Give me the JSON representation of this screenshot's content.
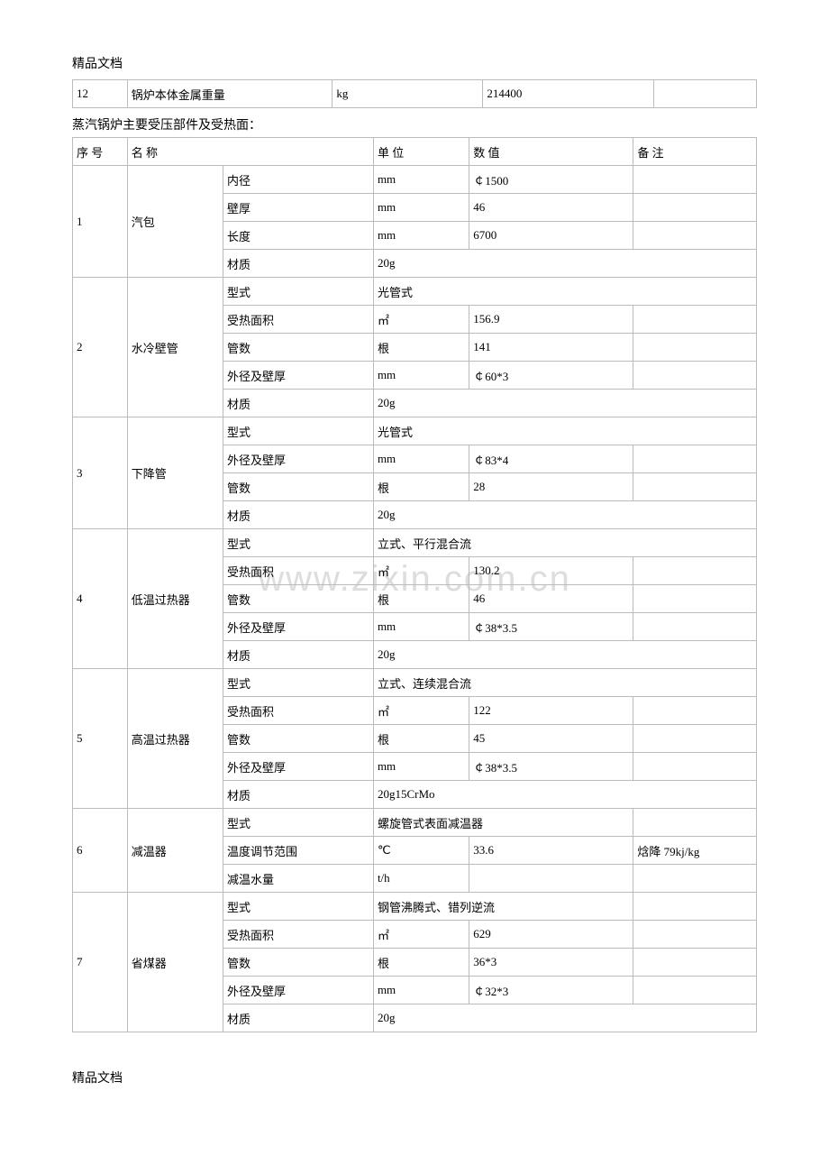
{
  "header": "精品文档",
  "footer": "精品文档",
  "watermark": "www.zixin.com.cn",
  "table1": {
    "widths": [
      "8%",
      "30%",
      "22%",
      "25%",
      "15%"
    ],
    "row": {
      "c0": "12",
      "c1": "锅炉本体金属重量",
      "c2": "kg",
      "c3": "214400",
      "c4": ""
    }
  },
  "section_title": "蒸汽锅炉主要受压部件及受热面：",
  "table2": {
    "widths": [
      "8%",
      "14%",
      "22%",
      "14%",
      "24%",
      "18%"
    ],
    "header": {
      "c0": "序 号",
      "c1": "名 称",
      "c2": "",
      "c3": "单 位",
      "c4": "数 值",
      "c5": "备 注"
    },
    "groups": [
      {
        "num": "1",
        "name": "汽包",
        "rows": [
          {
            "p": "内径",
            "u": "mm",
            "v": "￠1500",
            "n": "",
            "span": 1
          },
          {
            "p": "壁厚",
            "u": "mm",
            "v": "46",
            "n": "",
            "span": 1
          },
          {
            "p": "长度",
            "u": "mm",
            "v": "6700",
            "n": "",
            "span": 1
          },
          {
            "p": "材质",
            "u": "20g",
            "v": "",
            "n": "",
            "span": 3
          }
        ]
      },
      {
        "num": "2",
        "name": "水冷壁管",
        "rows": [
          {
            "p": "型式",
            "u": "光管式",
            "v": "",
            "n": "",
            "span": 3
          },
          {
            "p": "受热面积",
            "u": "㎡",
            "v": "156.9",
            "n": "",
            "span": 1
          },
          {
            "p": "管数",
            "u": "根",
            "v": "141",
            "n": "",
            "span": 1
          },
          {
            "p": "外径及壁厚",
            "u": "mm",
            "v": "￠60*3",
            "n": "",
            "span": 1
          },
          {
            "p": "材质",
            "u": "20g",
            "v": "",
            "n": "",
            "span": 3
          }
        ]
      },
      {
        "num": "3",
        "name": "下降管",
        "rows": [
          {
            "p": "型式",
            "u": "光管式",
            "v": "",
            "n": "",
            "span": 3
          },
          {
            "p": "外径及壁厚",
            "u": "mm",
            "v": "￠83*4",
            "n": "",
            "span": 1
          },
          {
            "p": "管数",
            "u": "根",
            "v": "28",
            "n": "",
            "span": 1
          },
          {
            "p": "材质",
            "u": "20g",
            "v": "",
            "n": "",
            "span": 3
          }
        ]
      },
      {
        "num": "4",
        "name": "低温过热器",
        "rows": [
          {
            "p": "型式",
            "u": "立式、平行混合流",
            "v": "",
            "n": "",
            "span": 3
          },
          {
            "p": "受热面积",
            "u": "㎡",
            "v": "130.2",
            "n": "",
            "span": 1
          },
          {
            "p": "管数",
            "u": "根",
            "v": "46",
            "n": "",
            "span": 1
          },
          {
            "p": "外径及壁厚",
            "u": "mm",
            "v": "￠38*3.5",
            "n": "",
            "span": 1
          },
          {
            "p": "材质",
            "u": "20g",
            "v": "",
            "n": "",
            "span": 3
          }
        ]
      },
      {
        "num": "5",
        "name": "高温过热器",
        "rows": [
          {
            "p": "型式",
            "u": "立式、连续混合流",
            "v": "",
            "n": "",
            "span": 3
          },
          {
            "p": "受热面积",
            "u": "㎡",
            "v": "122",
            "n": "",
            "span": 1
          },
          {
            "p": "管数",
            "u": "根",
            "v": "45",
            "n": "",
            "span": 1
          },
          {
            "p": "外径及壁厚",
            "u": "mm",
            "v": "￠38*3.5",
            "n": "",
            "span": 1
          },
          {
            "p": "材质",
            "u": "20g15CrMo",
            "v": "",
            "n": "",
            "span": 3
          }
        ]
      },
      {
        "num": "6",
        "name": "减温器",
        "rows": [
          {
            "p": "型式",
            "u": "螺旋管式表面减温器",
            "v": "",
            "n": "",
            "span": 2
          },
          {
            "p": "温度调节范围",
            "u": "℃",
            "v": "33.6",
            "n": "焓降 79kj/kg",
            "span": 1
          },
          {
            "p": "减温水量",
            "u": "t/h",
            "v": "",
            "n": "",
            "span": 1
          }
        ]
      },
      {
        "num": "7",
        "name": "省煤器",
        "rows": [
          {
            "p": "型式",
            "u": "钢管沸腾式、错列逆流",
            "v": "",
            "n": "",
            "span": 2
          },
          {
            "p": "受热面积",
            "u": "㎡",
            "v": "629",
            "n": "",
            "span": 1
          },
          {
            "p": "管数",
            "u": "根",
            "v": "36*3",
            "n": "",
            "span": 1
          },
          {
            "p": "外径及壁厚",
            "u": "mm",
            "v": "￠32*3",
            "n": "",
            "span": 1
          },
          {
            "p": "材质",
            "u": "20g",
            "v": "",
            "n": "",
            "span": 3
          }
        ]
      }
    ]
  }
}
